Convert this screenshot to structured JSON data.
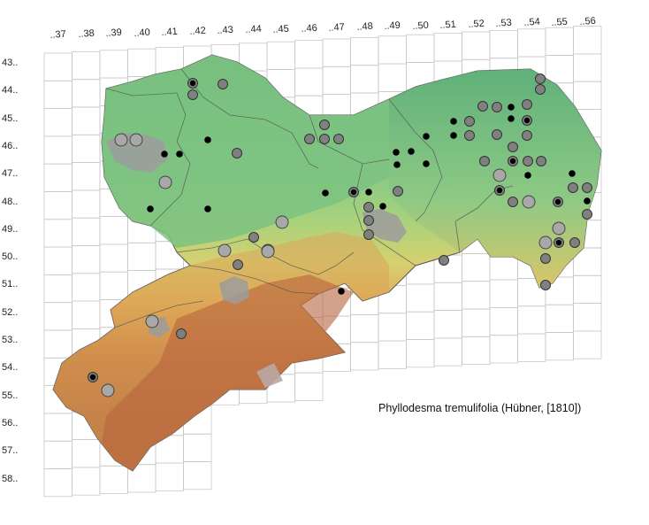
{
  "map": {
    "caption": "Phyllodesma tremulifolia (Hübner, [1810])",
    "grid": {
      "column_labels": [
        "..37",
        "..38",
        "..39",
        "..40",
        "..41",
        "..42",
        "..43",
        "..44",
        "..45",
        "..46",
        "..47",
        "..48",
        "..49",
        "..50",
        "..51",
        "..52",
        "..53",
        "..54",
        "..55",
        "..56"
      ],
      "row_labels": [
        "43..",
        "44..",
        "45..",
        "46..",
        "47..",
        "48..",
        "49..",
        "50..",
        "51..",
        "52..",
        "53..",
        "54..",
        "55..",
        "56..",
        "57..",
        "58.."
      ]
    },
    "elevation_colors": {
      "lowland": "#6fbf7e",
      "plain": "#8ccb80",
      "hills": "#d8cf6e",
      "upland": "#e0a050",
      "mountain": "#b0603a",
      "summit": "#a8a0a0",
      "urban": "#a0a0a0"
    },
    "legend_symbols": {
      "black_dot": "#000000",
      "grey_dot": "#808080",
      "light_grey_dot": "#a8a8a8"
    }
  }
}
